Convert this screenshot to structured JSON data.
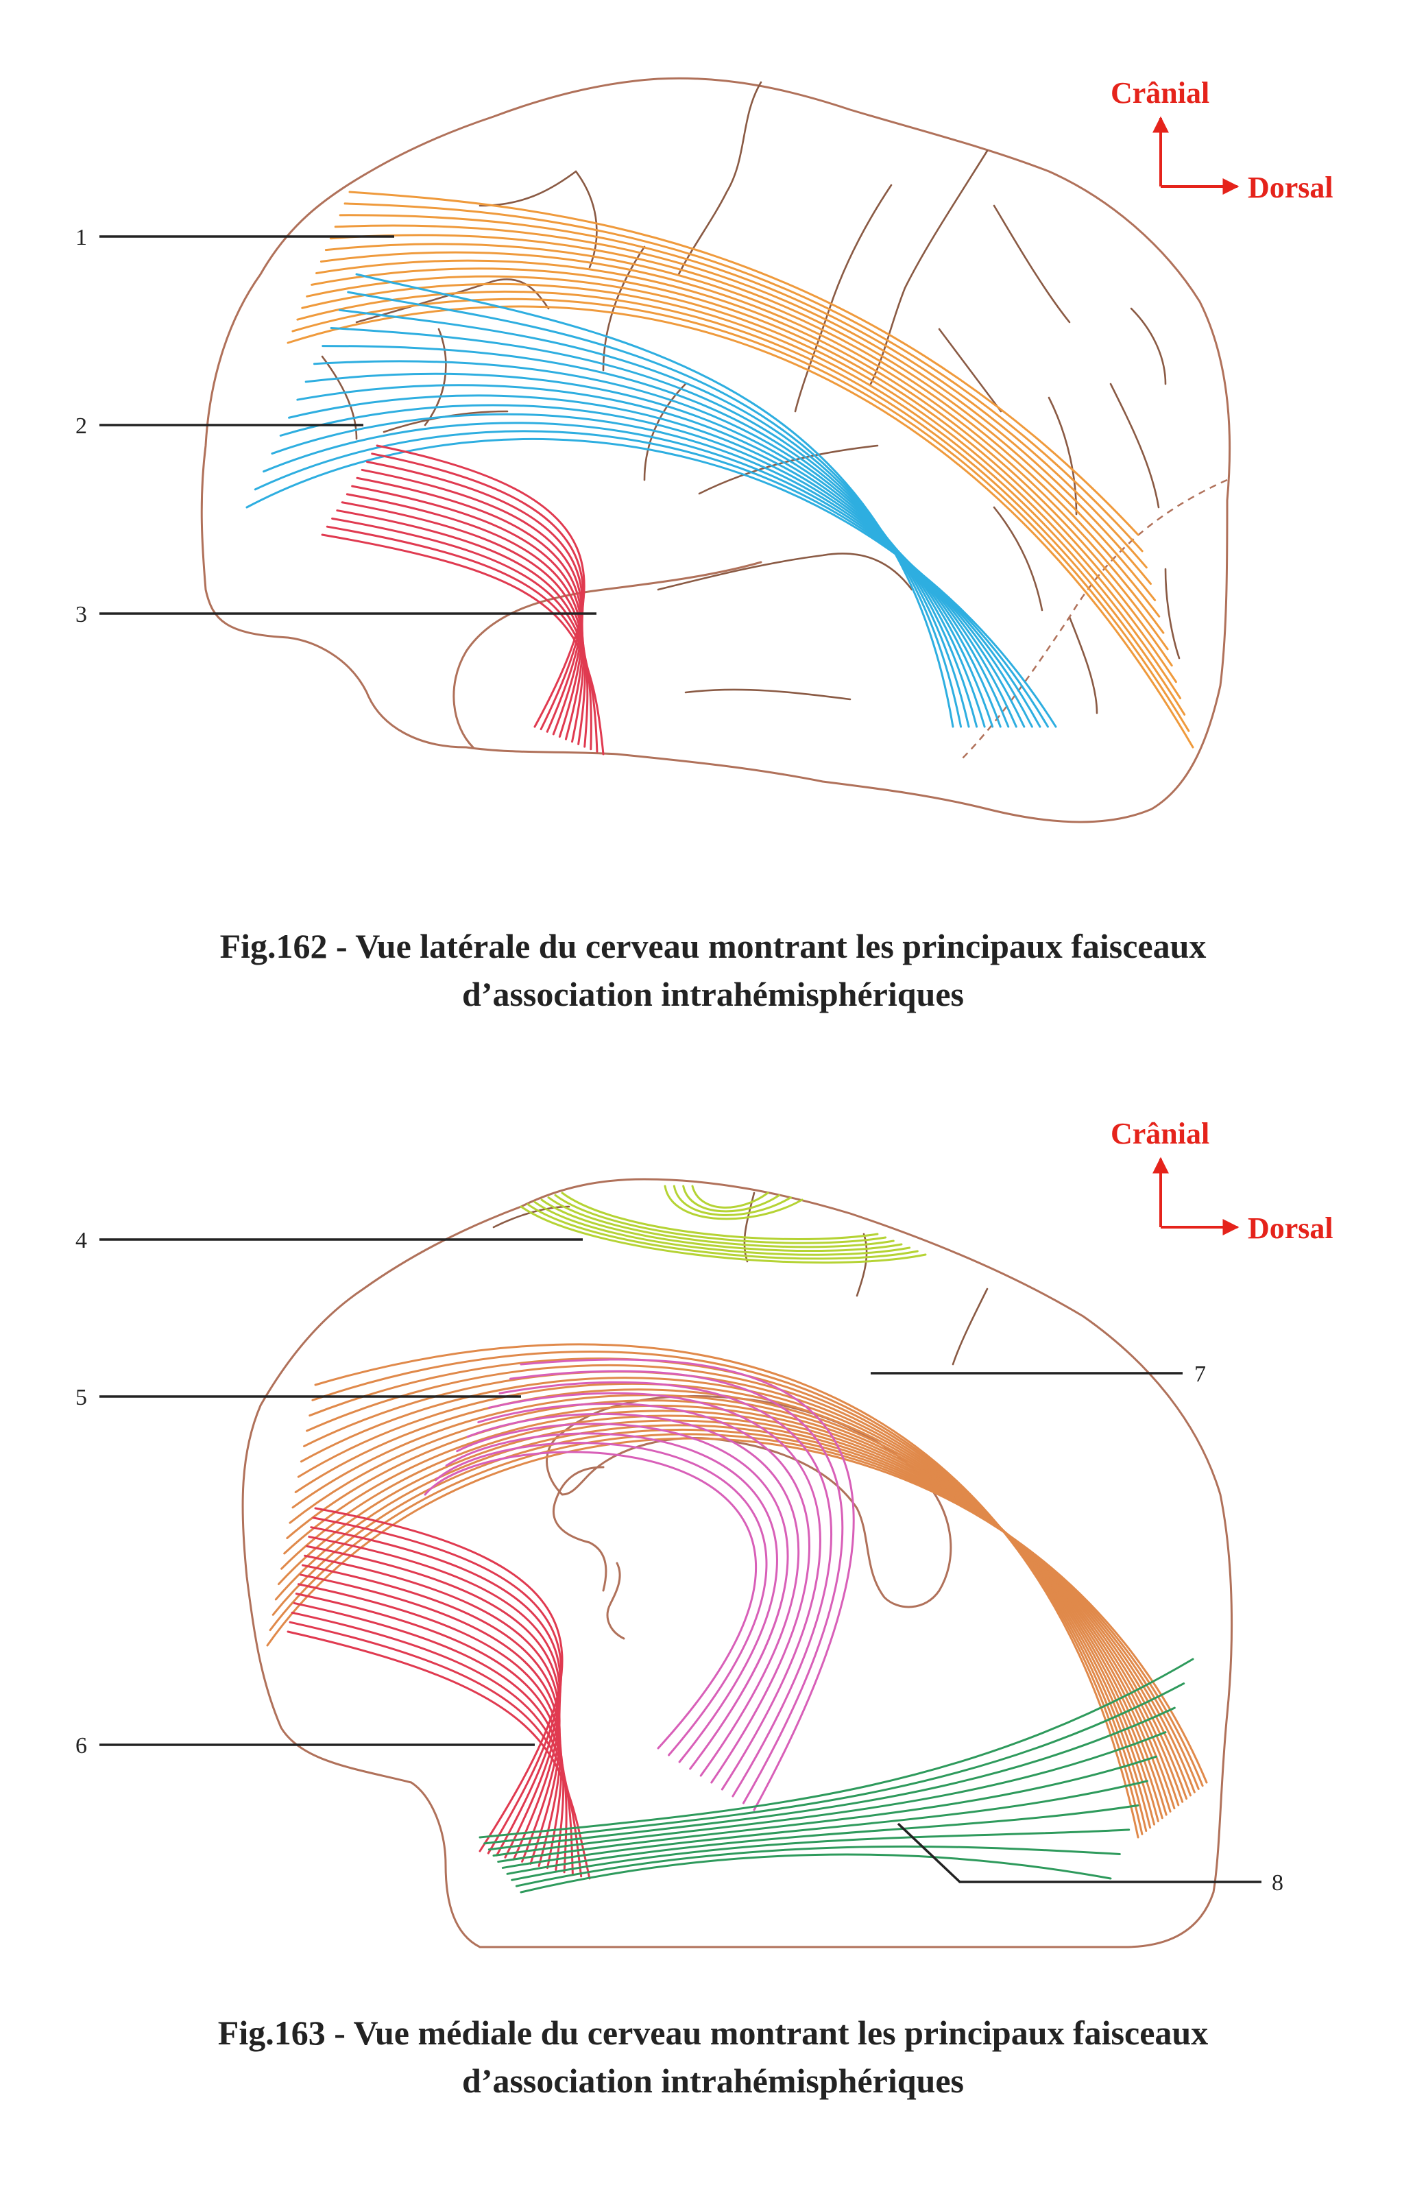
{
  "orientation": {
    "cranial_label": "Crânial",
    "dorsal_label": "Dorsal",
    "color": "#e5231b"
  },
  "fig162": {
    "caption_line1": "Fig.162 - Vue latérale du cerveau montrant les principaux faisceaux",
    "caption_line2": "d’association intrahémisphériques",
    "labels": [
      "1",
      "2",
      "3"
    ],
    "bundle_colors": {
      "1": "#ef9a3c",
      "2": "#2eaee0",
      "3": "#e03a50"
    }
  },
  "fig163": {
    "caption_line1": "Fig.163 - Vue médiale du cerveau montrant les principaux faisceaux",
    "caption_line2": "d’association intrahémisphériques",
    "labels": [
      "4",
      "5",
      "6",
      "7",
      "8"
    ],
    "bundle_colors": {
      "4": "#b5d334",
      "5": "#d85fb8",
      "6": "#e03a50",
      "7": "#e0894a",
      "8": "#2e9a5c"
    }
  },
  "outline_color": "#b0715a"
}
